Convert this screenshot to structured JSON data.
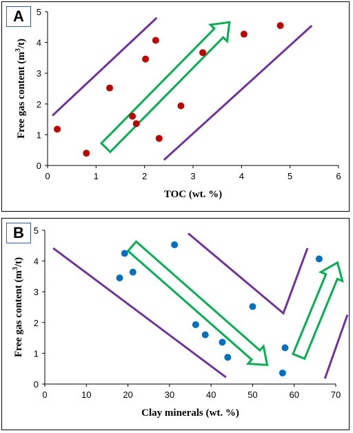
{
  "chart_data": [
    {
      "panel": "A",
      "type": "scatter",
      "xlabel": "TOC (wt. %)",
      "ylabel_main": "Free gas content (m",
      "ylabel_sup": "3",
      "ylabel_tail": "/t)",
      "xlim": [
        0,
        6
      ],
      "ylim": [
        0,
        5
      ],
      "xticks": [
        "0",
        "1",
        "2",
        "3",
        "4",
        "5",
        "6"
      ],
      "yticks": [
        "0",
        "1",
        "2",
        "3",
        "4",
        "5"
      ],
      "marker_color": "#c00000",
      "boundary_color": "#7030a0",
      "arrow_color": "#00b050",
      "points": [
        {
          "x": 0.2,
          "y": 1.18
        },
        {
          "x": 0.8,
          "y": 0.4
        },
        {
          "x": 1.28,
          "y": 2.52
        },
        {
          "x": 1.75,
          "y": 1.6
        },
        {
          "x": 1.83,
          "y": 1.36
        },
        {
          "x": 2.02,
          "y": 3.46
        },
        {
          "x": 2.23,
          "y": 4.07
        },
        {
          "x": 2.3,
          "y": 0.88
        },
        {
          "x": 2.75,
          "y": 1.94
        },
        {
          "x": 3.2,
          "y": 3.67
        },
        {
          "x": 4.05,
          "y": 4.27
        },
        {
          "x": 4.8,
          "y": 4.55
        }
      ],
      "boundary_lines": [
        [
          [
            0.1,
            1.62
          ],
          [
            2.25,
            4.8
          ]
        ],
        [
          [
            2.4,
            0.18
          ],
          [
            5.45,
            4.55
          ]
        ]
      ],
      "trend_arrow": {
        "from": [
          1.2,
          0.58
        ],
        "to": [
          3.75,
          4.66
        ],
        "direction": "up-right"
      }
    },
    {
      "panel": "B",
      "type": "scatter",
      "xlabel": "Clay minerals (wt. %)",
      "ylabel_main": "Free gas content (m",
      "ylabel_sup": "3",
      "ylabel_tail": "/t)",
      "xlim": [
        0,
        70
      ],
      "ylim": [
        0,
        5
      ],
      "xticks": [
        "0",
        "10",
        "20",
        "30",
        "40",
        "50",
        "60",
        "70"
      ],
      "yticks": [
        "0",
        "1",
        "2",
        "3",
        "4",
        "5"
      ],
      "marker_color": "#0070c0",
      "boundary_color": "#7030a0",
      "arrow_color": "#00b050",
      "points": [
        {
          "x": 18.0,
          "y": 3.45
        },
        {
          "x": 19.2,
          "y": 4.25
        },
        {
          "x": 21.2,
          "y": 3.64
        },
        {
          "x": 31.2,
          "y": 4.53
        },
        {
          "x": 36.3,
          "y": 1.93
        },
        {
          "x": 38.6,
          "y": 1.6
        },
        {
          "x": 42.7,
          "y": 1.36
        },
        {
          "x": 44.0,
          "y": 0.87
        },
        {
          "x": 50.0,
          "y": 2.52
        },
        {
          "x": 57.2,
          "y": 0.36
        },
        {
          "x": 57.8,
          "y": 1.18
        },
        {
          "x": 66.0,
          "y": 4.07
        }
      ],
      "boundary_lines": [
        [
          [
            2.0,
            4.42
          ],
          [
            43.6,
            0.22
          ]
        ],
        [
          [
            34.5,
            4.9
          ],
          [
            57.4,
            2.3
          ],
          [
            63.2,
            4.42
          ]
        ],
        [
          [
            67.4,
            0.18
          ],
          [
            72.8,
            2.25
          ]
        ]
      ],
      "trend_arrows": [
        {
          "from": [
            21.0,
            4.48
          ],
          "to": [
            53.5,
            0.62
          ],
          "direction": "down-right"
        },
        {
          "from": [
            61.1,
            0.9
          ],
          "to": [
            70.4,
            3.95
          ],
          "direction": "up-right"
        }
      ]
    }
  ]
}
